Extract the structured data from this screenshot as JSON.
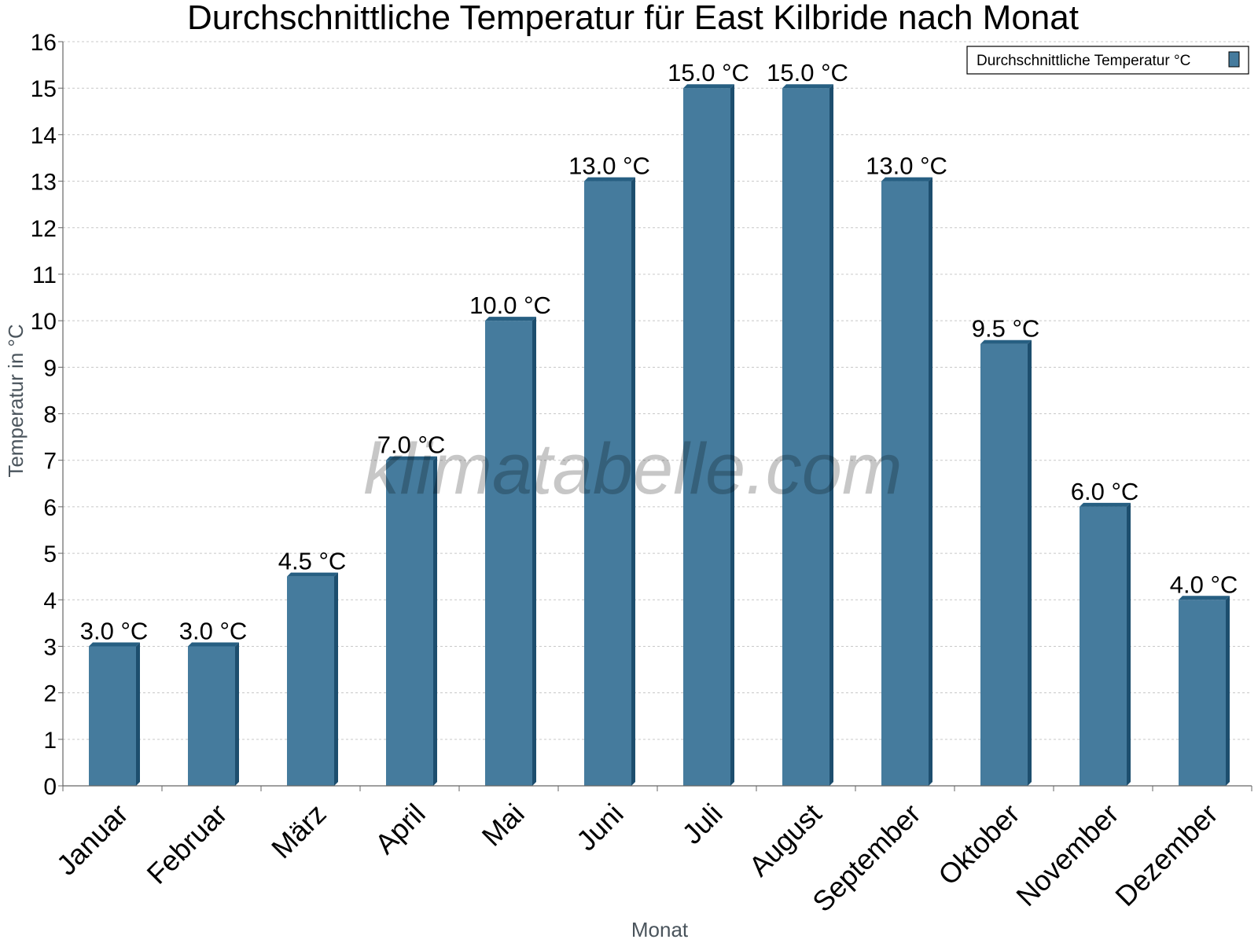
{
  "chart_data": {
    "type": "bar",
    "title": "Durchschnittliche Temperatur für East Kilbride nach Monat",
    "xlabel": "Monat",
    "ylabel": "Temperatur in °C",
    "categories": [
      "Januar",
      "Februar",
      "März",
      "April",
      "Mai",
      "Juni",
      "Juli",
      "August",
      "September",
      "Oktober",
      "November",
      "Dezember"
    ],
    "series": [
      {
        "name": "Durchschnittliche Temperatur °C",
        "values": [
          3.0,
          3.0,
          4.5,
          7.0,
          10.0,
          13.0,
          15.0,
          15.0,
          13.0,
          9.5,
          6.0,
          4.0
        ],
        "labels": [
          "3.0 °C",
          "3.0 °C",
          "4.5 °C",
          "7.0 °C",
          "10.0 °C",
          "13.0 °C",
          "15.0 °C",
          "15.0 °C",
          "13.0 °C",
          "9.5 °C",
          "6.0 °C",
          "4.0 °C"
        ],
        "color": "#457b9d"
      }
    ],
    "ylim": [
      0,
      16
    ],
    "yticks": [
      0,
      1,
      2,
      3,
      4,
      5,
      6,
      7,
      8,
      9,
      10,
      11,
      12,
      13,
      14,
      15,
      16
    ],
    "grid": true,
    "legend_position": "top-right",
    "watermark": "klimatabelle.com"
  },
  "colors": {
    "bar_front": "#457b9d",
    "bar_side": "#1d4e6e",
    "bar_top": "#275f82",
    "grid": "#c8c8c8",
    "axis": "#666666"
  }
}
